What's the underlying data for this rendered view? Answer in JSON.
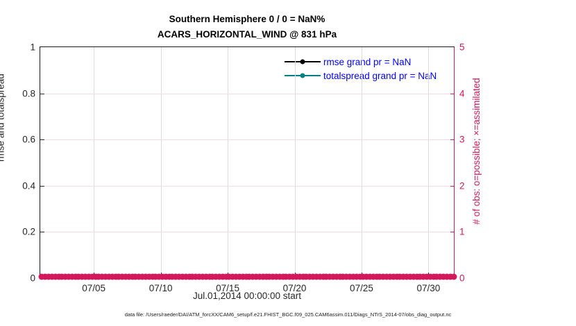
{
  "figure": {
    "title_line1": "Southern Hemisphere 0 / 0 = NaN%",
    "title_line2": "ACARS_HORIZONTAL_WIND @ 831 hPa",
    "footer": "data file: /Users/raeder/DAI/ATM_forcXX/CAM6_setup/f.e21.FHIST_BGC.f09_025.CAM6assim.011/Diags_NTrS_2014-07/obs_diag_output.nc"
  },
  "chart_data": {
    "type": "line",
    "title": "Southern Hemisphere 0 / 0 = NaN%",
    "subtitle": "ACARS_HORIZONTAL_WIND @ 831 hPa",
    "xlabel": "Jul.01,2014 00:00:00 start",
    "ylabel_left": "rmse and totalspread",
    "ylabel_right": "# of obs: o=possible; ×=assimilated",
    "ylim_left": [
      0,
      1
    ],
    "ylim_right": [
      0,
      5
    ],
    "yticks_left": [
      "0",
      "0.2",
      "0.4",
      "0.6",
      "0.8",
      "1"
    ],
    "yticks_right": [
      "0",
      "1",
      "2",
      "3",
      "4",
      "5"
    ],
    "xticks": [
      "07/05",
      "07/10",
      "07/15",
      "07/20",
      "07/25",
      "07/30"
    ],
    "xtick_days": [
      4,
      9,
      14,
      19,
      24,
      29
    ],
    "x_range_days": 31,
    "grid": true,
    "legend_position": "upper-right-inside",
    "legend": [
      {
        "label": "rmse grand pr = NaN",
        "color": "#000000"
      },
      {
        "label": "totalspread grand pr = NaN",
        "color": "#008080"
      }
    ],
    "series": [
      {
        "name": "rmse",
        "color": "#000000",
        "values": [],
        "note": "all NaN, no line drawn"
      },
      {
        "name": "totalspread",
        "color": "#008080",
        "values": [],
        "note": "all NaN, no line drawn"
      }
    ],
    "obs_markers": {
      "description": "o=possible and x=assimilated counts, all zero along baseline",
      "possible_count": 0,
      "assimilated_count": 0,
      "n_times": 124,
      "value": 0
    }
  },
  "colors": {
    "crimson": "#d5175b",
    "teal": "#008080",
    "legend_text": "#0000ff",
    "axis_dark": "#262626",
    "grid_gray": "#dcdcdc",
    "grid_pink": "#f6d9e2"
  }
}
